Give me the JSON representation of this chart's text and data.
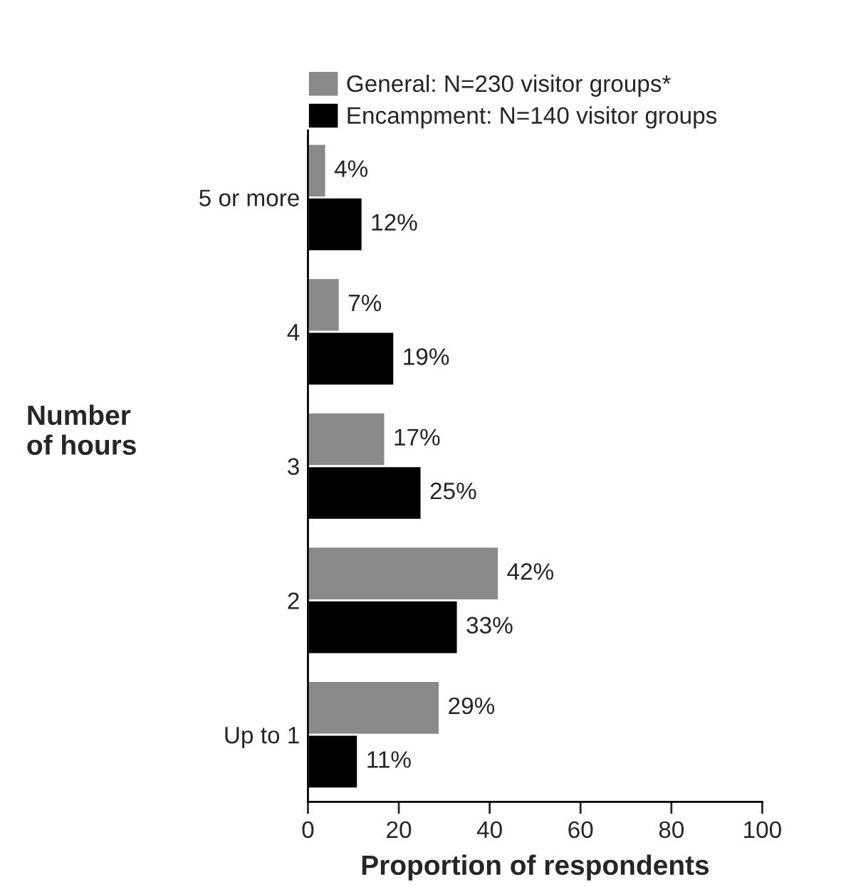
{
  "chart_data": {
    "type": "bar",
    "orientation": "horizontal",
    "xlabel": "Proportion of respondents",
    "ylabel": "Number\nof hours",
    "categories": [
      "5 or more",
      "4",
      "3",
      "2",
      "Up to 1"
    ],
    "series": [
      {
        "name": "General: N=230 visitor groups*",
        "color": "#898989",
        "values": [
          4,
          7,
          17,
          42,
          29
        ],
        "value_labels": [
          "4%",
          "7%",
          "17%",
          "42%",
          "29%"
        ]
      },
      {
        "name": "Encampment: N=140 visitor groups",
        "color": "#000000",
        "values": [
          12,
          19,
          25,
          33,
          11
        ],
        "value_labels": [
          "12%",
          "19%",
          "25%",
          "33%",
          "11%"
        ]
      }
    ],
    "xlim": [
      0,
      100
    ],
    "xticks": [
      0,
      20,
      40,
      60,
      80,
      100
    ],
    "grid": false,
    "legend": "top"
  }
}
